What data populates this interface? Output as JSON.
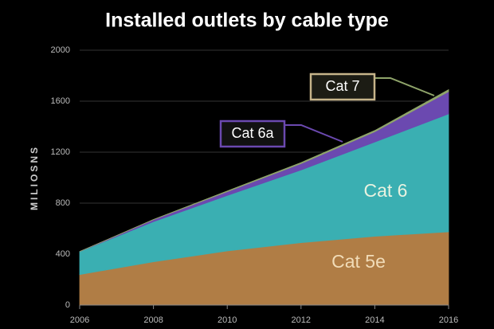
{
  "chart_data": {
    "type": "stacked-area",
    "title": "Installed outlets by cable type",
    "y_label": "MILIOSNS",
    "x": [
      2006,
      2008,
      2010,
      2012,
      2014,
      2016
    ],
    "xlim": [
      2006,
      2016
    ],
    "xticks": [
      2006,
      2008,
      2010,
      2012,
      2014,
      2016
    ],
    "ylim": [
      0,
      2000
    ],
    "yticks": [
      0,
      400,
      800,
      1200,
      1600,
      2000
    ],
    "grid": true,
    "series": [
      {
        "name": "Cat 5e",
        "color": "#b07d45",
        "values": [
          240,
          340,
          425,
          490,
          540,
          575
        ]
      },
      {
        "name": "Cat 6",
        "color": "#3aafb2",
        "values": [
          180,
          315,
          435,
          570,
          740,
          925
        ]
      },
      {
        "name": "Cat 6a",
        "color": "#6b49b0",
        "values": [
          0,
          15,
          30,
          50,
          80,
          175
        ]
      },
      {
        "name": "Cat 7",
        "color": "#8fa46a",
        "values": [
          0,
          2,
          5,
          8,
          10,
          15
        ]
      }
    ]
  }
}
